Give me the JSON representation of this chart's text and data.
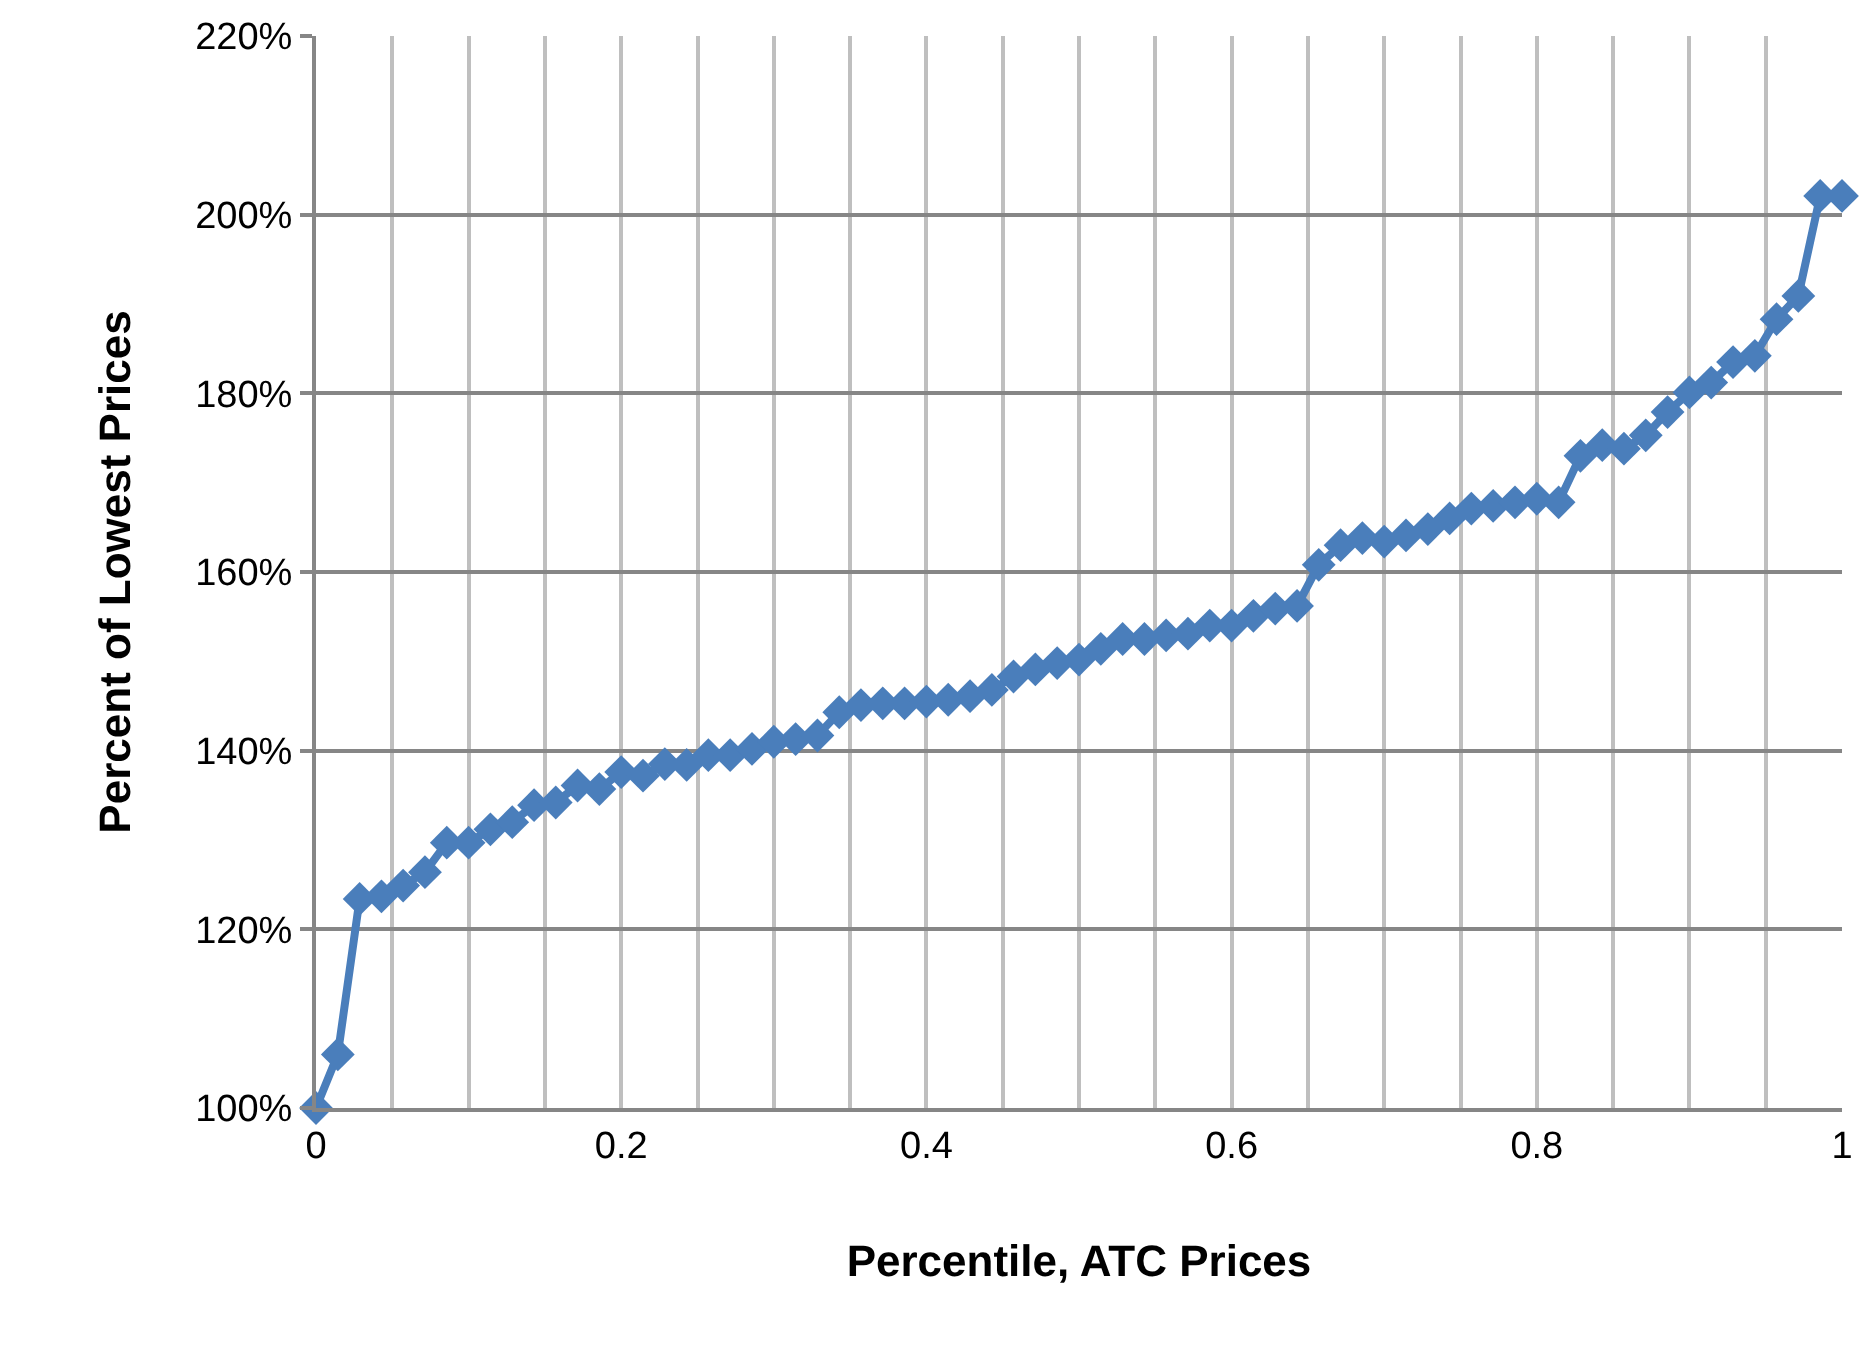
{
  "chart_data": {
    "type": "line",
    "xlabel": "Percentile, ATC Prices",
    "ylabel": "Percent of Lowest Prices",
    "x": [
      0,
      0.0143,
      0.0286,
      0.0429,
      0.0571,
      0.0714,
      0.0857,
      0.1,
      0.1143,
      0.1286,
      0.1429,
      0.1571,
      0.1714,
      0.1857,
      0.2,
      0.2143,
      0.2286,
      0.2429,
      0.2571,
      0.2714,
      0.2857,
      0.3,
      0.3143,
      0.3286,
      0.3429,
      0.3571,
      0.3714,
      0.3857,
      0.4,
      0.4143,
      0.4286,
      0.4429,
      0.4571,
      0.4714,
      0.4857,
      0.5,
      0.5143,
      0.5286,
      0.5429,
      0.5571,
      0.5714,
      0.5857,
      0.6,
      0.6143,
      0.6286,
      0.6429,
      0.6571,
      0.6714,
      0.6857,
      0.7,
      0.7143,
      0.7286,
      0.7429,
      0.7571,
      0.7714,
      0.7857,
      0.8,
      0.8143,
      0.8286,
      0.8429,
      0.8571,
      0.8714,
      0.8857,
      0.9,
      0.9143,
      0.9286,
      0.9429,
      0.9571,
      0.9714,
      0.9857,
      1
    ],
    "series": [
      {
        "color": "#4a7ebb",
        "values": [
          100,
          106,
          123.4,
          123.7,
          124.9,
          126.4,
          129.7,
          129.7,
          131.2,
          132,
          133.9,
          134.2,
          136.1,
          135.7,
          137.6,
          137.2,
          138.5,
          138.4,
          139.5,
          139.5,
          140.2,
          141,
          141.3,
          141.7,
          144.3,
          145.1,
          145.3,
          145.3,
          145.5,
          145.7,
          146.1,
          146.8,
          148.3,
          149.1,
          149.8,
          150.2,
          151.4,
          152.5,
          152.5,
          152.9,
          153.1,
          154,
          154,
          155.1,
          155.9,
          156.2,
          160.8,
          163,
          163.8,
          163.4,
          164.1,
          164.8,
          166,
          167.1,
          167.4,
          167.8,
          168.2,
          167.8,
          173,
          174.2,
          173.8,
          175.3,
          177.9,
          180.1,
          181.2,
          183.5,
          184.2,
          188.3,
          190.9,
          202.1,
          202.1
        ]
      }
    ],
    "marker": "diamond",
    "line_style": "solid",
    "grid": true,
    "xlim": [
      0,
      1
    ],
    "xticks": [
      0,
      {
        "value": 0.05,
        "label": null
      },
      {
        "value": 0.1,
        "label": null
      },
      {
        "value": 0.15,
        "label": null
      },
      0.2,
      {
        "value": 0.25,
        "label": null
      },
      {
        "value": 0.3,
        "label": null
      },
      {
        "value": 0.35,
        "label": null
      },
      0.4,
      {
        "value": 0.45,
        "label": null
      },
      {
        "value": 0.5,
        "label": null
      },
      {
        "value": 0.55,
        "label": null
      },
      0.6,
      {
        "value": 0.65,
        "label": null
      },
      {
        "value": 0.7,
        "label": null
      },
      {
        "value": 0.75,
        "label": null
      },
      0.8,
      {
        "value": 0.85,
        "label": null
      },
      {
        "value": 0.9,
        "label": null
      },
      {
        "value": 0.95,
        "label": null
      },
      1
    ],
    "ylim": [
      100,
      220
    ],
    "yticks": [
      {
        "value": 100,
        "label": "100%"
      },
      {
        "value": 120,
        "label": "120%"
      },
      {
        "value": 140,
        "label": "140%"
      },
      {
        "value": 160,
        "label": "160%"
      },
      {
        "value": 180,
        "label": "180%"
      },
      {
        "value": 200,
        "label": "200%"
      },
      {
        "value": 220,
        "label": "220%"
      }
    ]
  }
}
